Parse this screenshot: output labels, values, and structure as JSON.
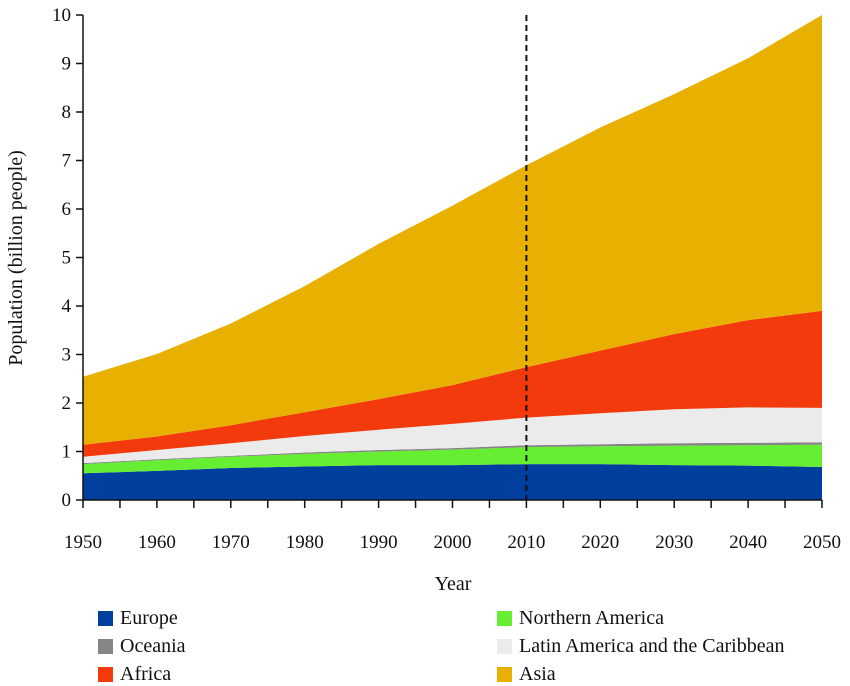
{
  "chart_data": {
    "type": "area",
    "stacked": true,
    "xlabel": "Year",
    "ylabel": "Population (billion people)",
    "xlim": [
      1950,
      2050
    ],
    "ylim": [
      0,
      10
    ],
    "x_ticks": [
      1950,
      1960,
      1970,
      1980,
      1990,
      2000,
      2010,
      2020,
      2030,
      2040,
      2050
    ],
    "y_ticks": [
      0,
      1,
      2,
      3,
      4,
      5,
      6,
      7,
      8,
      9,
      10
    ],
    "vline": {
      "x": 2010,
      "style": "dashed"
    },
    "x": [
      1950,
      1960,
      1970,
      1980,
      1990,
      2000,
      2010,
      2020,
      2030,
      2040,
      2050
    ],
    "series": [
      {
        "name": "Europe",
        "color": "#003f9e",
        "values": [
          0.55,
          0.6,
          0.66,
          0.69,
          0.72,
          0.72,
          0.74,
          0.74,
          0.72,
          0.71,
          0.68
        ]
      },
      {
        "name": "Northern America",
        "color": "#66ee33",
        "values": [
          0.19,
          0.22,
          0.23,
          0.26,
          0.28,
          0.32,
          0.35,
          0.37,
          0.4,
          0.42,
          0.46
        ]
      },
      {
        "name": "Oceania",
        "color": "#858585",
        "values": [
          0.02,
          0.02,
          0.02,
          0.03,
          0.03,
          0.03,
          0.04,
          0.04,
          0.05,
          0.05,
          0.05
        ]
      },
      {
        "name": "Latin America and the Caribbean",
        "color": "#ebebeb",
        "values": [
          0.13,
          0.19,
          0.26,
          0.34,
          0.42,
          0.5,
          0.57,
          0.64,
          0.7,
          0.73,
          0.71
        ]
      },
      {
        "name": "Africa",
        "color": "#f23a0c",
        "values": [
          0.25,
          0.28,
          0.37,
          0.49,
          0.63,
          0.8,
          1.04,
          1.29,
          1.55,
          1.8,
          2.0
        ]
      },
      {
        "name": "Asia",
        "color": "#e8b000",
        "values": [
          1.4,
          1.7,
          2.1,
          2.6,
          3.2,
          3.7,
          4.16,
          4.6,
          4.95,
          5.4,
          6.1
        ]
      }
    ],
    "legend_order": [
      "Europe",
      "Northern America",
      "Oceania",
      "Latin America and the Caribbean",
      "Africa",
      "Asia"
    ]
  }
}
